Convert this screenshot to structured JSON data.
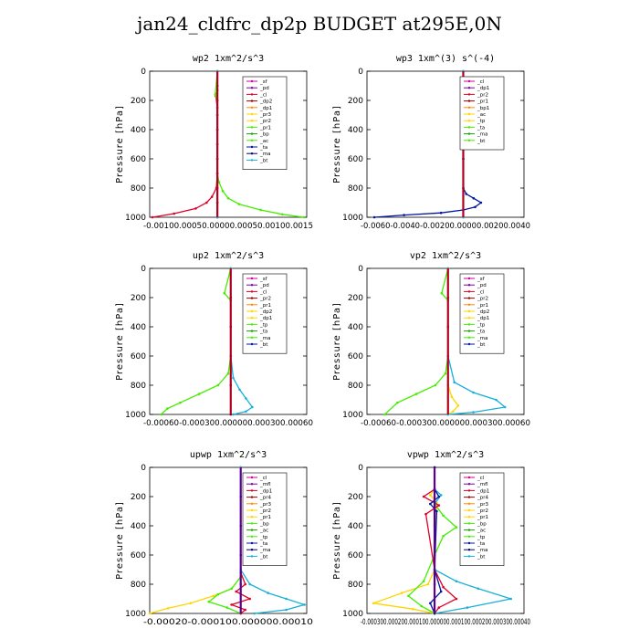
{
  "figure_title": "jan24_cldfrc_dp2p  BUDGET at295E,0N",
  "colors": {
    "magenta": "#d4009a",
    "purple": "#7a00b0",
    "red": "#e0002a",
    "orange": "#ff8a00",
    "yellow": "#ffd500",
    "green": "#44ee00",
    "dkgreen": "#13a000",
    "blue": "#0016a0",
    "cyan": "#18b0d8",
    "navy": "#000080",
    "darkred": "#9a0000"
  },
  "chart_data": [
    {
      "type": "line",
      "title": "wp2  1xm^2/s^3",
      "ylabel": "Pressure [hPa]",
      "ylim": [
        1000,
        0
      ],
      "yticks": [
        0,
        200,
        400,
        600,
        800,
        1000
      ],
      "xlim": [
        -0.00125,
        0.00165
      ],
      "xtick_labels": "-0.00100.00050.00000.00050.00100.0015",
      "legend": [
        "_sf",
        "_pd",
        "_cl",
        "_dp2",
        "_dp1",
        "_pr3",
        "_pr2",
        "_pr1",
        "_bp",
        "_ac",
        "_ta",
        "_ma",
        "_bt"
      ],
      "series": [
        {
          "name": "_sf",
          "color": "magenta",
          "x": [
            0,
            0,
            0,
            0,
            0,
            0,
            0,
            0,
            0,
            0,
            0
          ],
          "y": [
            0,
            100,
            200,
            300,
            400,
            500,
            600,
            700,
            800,
            900,
            1000
          ]
        },
        {
          "name": "_pd",
          "color": "purple",
          "x": [
            0,
            0,
            0,
            0,
            0,
            0,
            0,
            0,
            0,
            0,
            0
          ],
          "y": [
            0,
            100,
            200,
            300,
            400,
            500,
            600,
            700,
            800,
            900,
            1000
          ]
        },
        {
          "name": "_cl",
          "color": "red",
          "x": [
            0,
            0,
            -3e-05,
            0,
            0,
            0,
            0,
            -2e-05,
            -0.0001,
            -0.0002,
            -0.0004,
            -0.0008,
            -0.0012
          ],
          "y": [
            0,
            130,
            170,
            250,
            400,
            600,
            700,
            800,
            860,
            900,
            940,
            975,
            1000
          ]
        },
        {
          "name": "_pr1",
          "color": "green",
          "x": [
            0,
            -4e-05,
            0,
            0,
            0,
            0,
            3e-05,
            0.0001,
            0.0002,
            0.0004,
            0.0008,
            0.0012,
            0.0016
          ],
          "y": [
            0,
            160,
            200,
            300,
            500,
            700,
            760,
            820,
            870,
            910,
            950,
            980,
            1000
          ]
        },
        {
          "name": "_bt",
          "color": "cyan",
          "x": [
            0,
            0,
            0,
            0,
            0,
            0,
            0
          ],
          "y": [
            0,
            200,
            400,
            600,
            800,
            900,
            1000
          ]
        }
      ]
    },
    {
      "type": "line",
      "title": "wp3  1xm^(3) s^(-4)",
      "ylabel": "Pressure [hPa]",
      "ylim": [
        1000,
        0
      ],
      "yticks": [
        0,
        200,
        400,
        600,
        800,
        1000
      ],
      "xlim": [
        -0.0065,
        0.0041
      ],
      "xtick_labels": "-0.0060-0.0040-0.00200.00000.00200.0040",
      "legend": [
        "_cl",
        "_dp1",
        "_pr2",
        "_pr1",
        "_bp1",
        "_ac",
        "_tp",
        "_ta",
        "_ma",
        "_bt"
      ],
      "series": [
        {
          "name": "_cl",
          "color": "red",
          "x": [
            0,
            0,
            0,
            0,
            0,
            0
          ],
          "y": [
            0,
            200,
            400,
            600,
            800,
            1000
          ]
        },
        {
          "name": "_tp",
          "color": "blue",
          "x": [
            0,
            0,
            0,
            0.0002,
            0.0007,
            0.0012,
            0.0008,
            0,
            -0.0015,
            -0.004,
            -0.006
          ],
          "y": [
            0,
            600,
            800,
            840,
            870,
            900,
            930,
            950,
            970,
            985,
            1000
          ]
        },
        {
          "name": "_bt",
          "color": "cyan",
          "x": [
            0,
            0,
            0,
            0,
            0,
            0
          ],
          "y": [
            0,
            200,
            400,
            600,
            800,
            1000
          ]
        }
      ]
    },
    {
      "type": "line",
      "title": "up2  1xm^2/s^3",
      "ylabel": "Pressure [hPa]",
      "ylim": [
        1000,
        0
      ],
      "yticks": [
        0,
        200,
        400,
        600,
        800,
        1000
      ],
      "xlim": [
        -0.00064,
        0.0006
      ],
      "xtick_labels": "-0.00060-0.000300.000000.000300.00060",
      "legend": [
        "_sf",
        "_pd",
        "_cl",
        "_pr2",
        "_pr1",
        "_dp2",
        "_dp1",
        "_tp",
        "_ta",
        "_ma",
        "_bt"
      ],
      "series": [
        {
          "name": "_sf",
          "color": "darkred",
          "x": [
            0,
            0,
            0,
            0,
            0,
            0
          ],
          "y": [
            0,
            200,
            400,
            600,
            800,
            1000
          ]
        },
        {
          "name": "_pr1",
          "color": "green",
          "x": [
            0,
            -5e-05,
            0,
            0,
            -2e-05,
            -0.0001,
            -0.00025,
            -0.0004,
            -0.0005,
            -0.00055
          ],
          "y": [
            0,
            170,
            220,
            600,
            720,
            800,
            860,
            920,
            960,
            1000
          ]
        },
        {
          "name": "_tp",
          "color": "cyan",
          "x": [
            0,
            0,
            2e-05,
            7e-05,
            0.00012,
            0.00017,
            0.00012,
            2e-05
          ],
          "y": [
            0,
            600,
            750,
            830,
            890,
            950,
            980,
            1000
          ]
        }
      ]
    },
    {
      "type": "line",
      "title": "vp2  1xm^2/s^3",
      "ylabel": "Pressure [hPa]",
      "ylim": [
        1000,
        0
      ],
      "yticks": [
        0,
        200,
        400,
        600,
        800,
        1000
      ],
      "xlim": [
        -0.00064,
        0.0006
      ],
      "xtick_labels": "-0.00060-0.000300.000000.000300.00060",
      "legend": [
        "_sf",
        "_pd",
        "_cl",
        "_pr2",
        "_pr1",
        "_dp2",
        "_dp1",
        "_tp",
        "_ta",
        "_ma",
        "_bt"
      ],
      "series": [
        {
          "name": "_sf",
          "color": "darkred",
          "x": [
            0,
            0,
            0,
            0,
            0,
            0
          ],
          "y": [
            0,
            200,
            400,
            600,
            800,
            1000
          ]
        },
        {
          "name": "_pr1",
          "color": "green",
          "x": [
            0,
            -5e-05,
            0,
            0,
            -2e-05,
            -0.0001,
            -0.00025,
            -0.0004,
            -0.0005
          ],
          "y": [
            0,
            170,
            220,
            600,
            720,
            800,
            860,
            920,
            1000
          ]
        },
        {
          "name": "_pr2",
          "color": "yellow",
          "x": [
            0,
            0,
            3e-05,
            8e-05,
            4e-05,
            0
          ],
          "y": [
            0,
            800,
            880,
            940,
            980,
            1000
          ]
        },
        {
          "name": "_tp",
          "color": "cyan",
          "x": [
            0,
            0,
            5e-05,
            0.0002,
            0.00038,
            0.00045,
            0.0002,
            0
          ],
          "y": [
            0,
            600,
            780,
            850,
            900,
            950,
            985,
            1000
          ]
        }
      ]
    },
    {
      "type": "line",
      "title": "upwp  1xm^2/s^3",
      "ylabel": "Pressure [hPa]",
      "ylim": [
        1000,
        0
      ],
      "yticks": [
        0,
        200,
        400,
        600,
        800,
        1000
      ],
      "xlim": [
        -0.0002,
        0.000145
      ],
      "xtick_labels": "-0.00020-0.000100.000000.00010",
      "legend": [
        "_cl",
        "_mfl",
        "_dp1",
        "_pr4",
        "_pr3",
        "_pr2",
        "_pr1",
        "_bp",
        "_ac",
        "_tp",
        "_ta",
        "_ma",
        "_bt"
      ],
      "series": [
        {
          "name": "_cl",
          "color": "purple",
          "x": [
            0,
            0,
            0,
            0,
            0,
            0
          ],
          "y": [
            0,
            200,
            400,
            600,
            800,
            1000
          ]
        },
        {
          "name": "_pr2",
          "color": "yellow",
          "x": [
            0,
            0,
            -2e-05,
            -6e-05,
            -0.00011,
            -0.00016,
            -0.0002
          ],
          "y": [
            0,
            750,
            830,
            880,
            930,
            965,
            1000
          ]
        },
        {
          "name": "_pr1",
          "color": "green",
          "x": [
            0,
            0,
            -2e-05,
            -5e-05,
            -7e-05,
            -3e-05,
            0
          ],
          "y": [
            0,
            750,
            830,
            870,
            920,
            960,
            1000
          ]
        },
        {
          "name": "_dp1",
          "color": "red",
          "x": [
            0,
            0,
            1e-05,
            -1e-05,
            2e-05,
            -2e-05,
            1e-05,
            0
          ],
          "y": [
            0,
            720,
            800,
            850,
            900,
            940,
            975,
            1000
          ]
        },
        {
          "name": "_tp",
          "color": "cyan",
          "x": [
            0,
            0,
            2e-05,
            6e-05,
            0.0001,
            0.00014,
            0.0001,
            3e-05
          ],
          "y": [
            0,
            700,
            800,
            860,
            900,
            940,
            975,
            1000
          ]
        }
      ]
    },
    {
      "type": "line",
      "title": "vpwp  1xm^2/s^3",
      "ylabel": "Pressure [hPa]",
      "ylim": [
        1000,
        0
      ],
      "yticks": [
        0,
        200,
        400,
        600,
        800,
        1000
      ],
      "xlim": [
        -0.00031,
        0.00041
      ],
      "xtick_labels": "-0.000300.000200.000100.000000.000100.000200.000300.00040",
      "legend": [
        "_cl",
        "_mfl",
        "_dp1",
        "_pr4",
        "_pr3",
        "_pr2",
        "_pr1",
        "_bp",
        "_ac",
        "_tp",
        "_ta",
        "_ma",
        "_bt"
      ],
      "series": [
        {
          "name": "_cl",
          "color": "purple",
          "x": [
            0,
            0,
            0,
            0,
            0,
            0
          ],
          "y": [
            0,
            200,
            400,
            600,
            800,
            1000
          ]
        },
        {
          "name": "_pr2",
          "color": "yellow",
          "x": [
            0,
            0,
            -2e-05,
            1e-05,
            0,
            -3e-05,
            -0.00015,
            -0.00028,
            -0.0001,
            0
          ],
          "y": [
            0,
            150,
            190,
            240,
            700,
            800,
            860,
            930,
            970,
            1000
          ]
        },
        {
          "name": "_pr1",
          "color": "green",
          "x": [
            0,
            0,
            4e-05,
            0.0001,
            4e-05,
            0,
            -5e-05,
            -0.00012,
            -6e-05,
            0
          ],
          "y": [
            0,
            250,
            330,
            410,
            470,
            600,
            780,
            880,
            950,
            1000
          ]
        },
        {
          "name": "_dp1",
          "color": "red",
          "x": [
            0,
            0,
            -5e-05,
            2e-05,
            -4e-05,
            0,
            4e-05,
            0.0001,
            2e-05,
            0
          ],
          "y": [
            0,
            150,
            200,
            260,
            320,
            700,
            820,
            900,
            960,
            1000
          ]
        },
        {
          "name": "_tp",
          "color": "cyan",
          "x": [
            0,
            0,
            3e-05,
            0,
            0,
            0.0001,
            0.0002,
            0.00035,
            0.00015,
            0
          ],
          "y": [
            0,
            150,
            190,
            250,
            700,
            780,
            830,
            900,
            960,
            1000
          ]
        },
        {
          "name": "_bt",
          "color": "blue",
          "x": [
            0,
            0,
            2e-05,
            -2e-05,
            1e-05,
            0,
            3e-05,
            -2e-05,
            0
          ],
          "y": [
            0,
            150,
            200,
            250,
            300,
            700,
            850,
            930,
            1000
          ]
        }
      ]
    }
  ]
}
